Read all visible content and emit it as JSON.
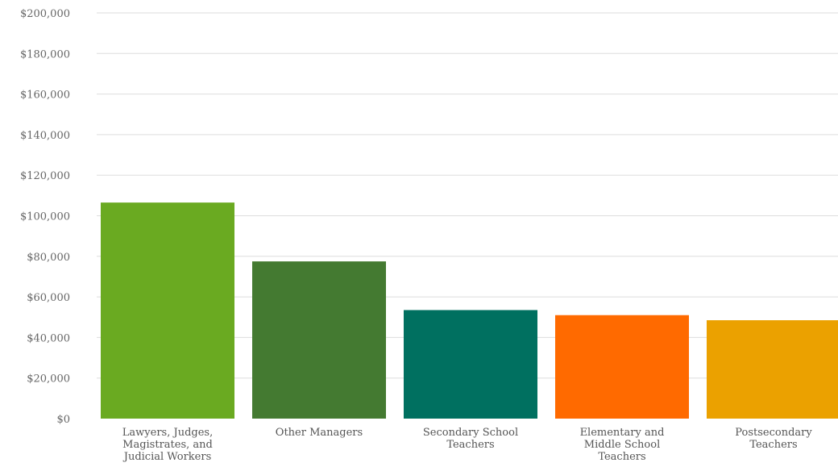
{
  "chart_data": {
    "type": "bar",
    "title": "",
    "xlabel": "",
    "ylabel": "",
    "ylim": [
      0,
      200000
    ],
    "y_ticks": [
      {
        "value": 0,
        "label": "$0"
      },
      {
        "value": 20000,
        "label": "$20,000"
      },
      {
        "value": 40000,
        "label": "$40,000"
      },
      {
        "value": 60000,
        "label": "$60,000"
      },
      {
        "value": 80000,
        "label": "$80,000"
      },
      {
        "value": 100000,
        "label": "$100,000"
      },
      {
        "value": 120000,
        "label": "$120,000"
      },
      {
        "value": 140000,
        "label": "$140,000"
      },
      {
        "value": 160000,
        "label": "$160,000"
      },
      {
        "value": 180000,
        "label": "$180,000"
      },
      {
        "value": 200000,
        "label": "$200,000"
      }
    ],
    "grid": true,
    "categories": [
      [
        "Lawyers, Judges,",
        "Magistrates, and",
        "Judicial Workers"
      ],
      [
        "Other Managers"
      ],
      [
        "Secondary School",
        "Teachers"
      ],
      [
        "Elementary and",
        "Middle School",
        "Teachers"
      ],
      [
        "Postsecondary",
        "Teachers"
      ]
    ],
    "values": [
      106500,
      77500,
      53500,
      51000,
      48500
    ],
    "colors": [
      "#6aaa21",
      "#447a31",
      "#007060",
      "#ff6a00",
      "#eba100"
    ]
  }
}
